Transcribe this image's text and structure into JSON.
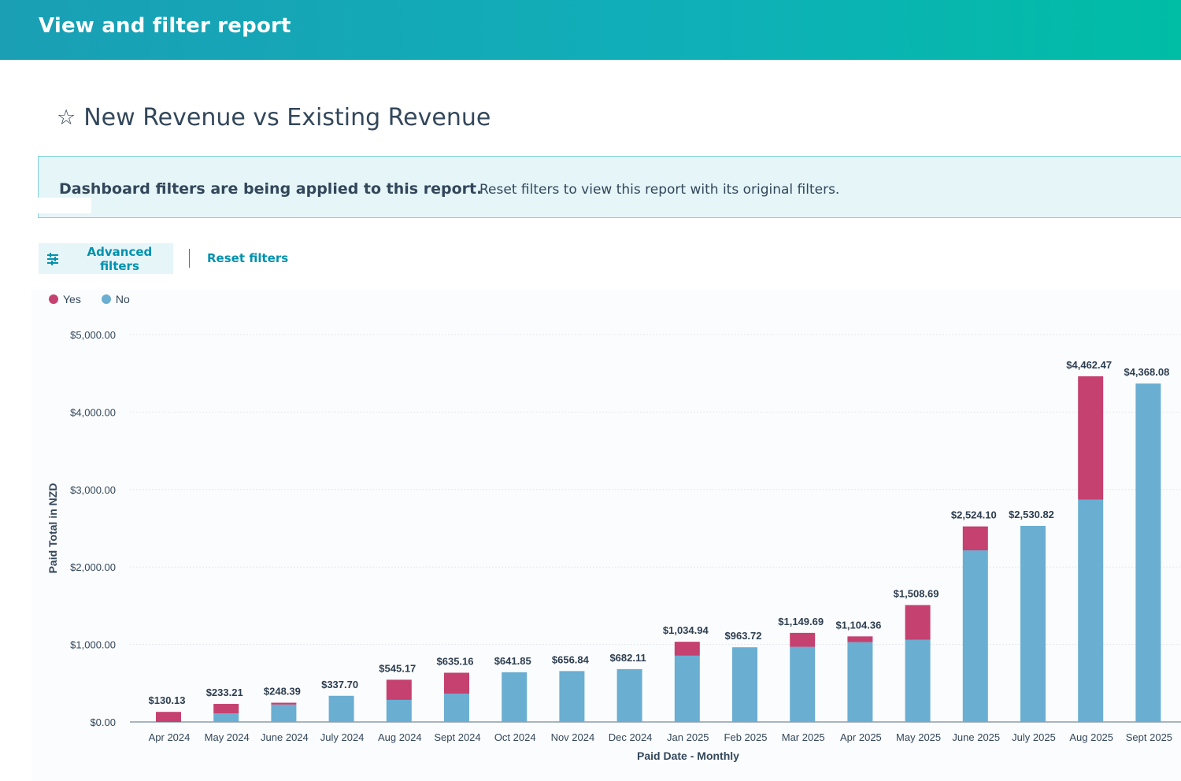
{
  "header": {
    "title": "View and filter report"
  },
  "report": {
    "title": "New Revenue vs Existing Revenue",
    "star_icon": "star-outline-icon"
  },
  "banner": {
    "strong": "Dashboard filters are being applied to this report.",
    "text": "Reset filters to view this report with its original filters."
  },
  "toolbar": {
    "advanced_filters_label": "Advanced filters",
    "advanced_filters_icon": "sliders-icon",
    "reset_filters_label": "Reset filters"
  },
  "colors": {
    "yes": "#c5416f",
    "no": "#6aaed2",
    "accent": "#0091ae"
  },
  "chart_data": {
    "type": "bar",
    "stacked": true,
    "xlabel": "Paid Date - Monthly",
    "ylabel": "Paid Total in NZD",
    "ylim": [
      0,
      5000
    ],
    "yticks": [
      "$0.00",
      "$1,000.00",
      "$2,000.00",
      "$3,000.00",
      "$4,000.00",
      "$5,000.00"
    ],
    "ytick_values": [
      0,
      1000,
      2000,
      3000,
      4000,
      5000
    ],
    "legend_position": "top-left",
    "grid": true,
    "categories": [
      "Apr 2024",
      "May 2024",
      "June 2024",
      "July 2024",
      "Aug 2024",
      "Sept 2024",
      "Oct 2024",
      "Nov 2024",
      "Dec 2024",
      "Jan 2025",
      "Feb 2025",
      "Mar 2025",
      "Apr 2025",
      "May 2025",
      "June 2025",
      "July 2025",
      "Aug 2025",
      "Sept 2025"
    ],
    "series": [
      {
        "name": "No",
        "values": [
          0,
          110,
          225,
          337.7,
          285,
          365,
          641.85,
          656.84,
          682.11,
          855,
          963.72,
          970,
          1030,
          1060,
          2215,
          2530.82,
          2870,
          4368.08
        ]
      },
      {
        "name": "Yes",
        "values": [
          130.13,
          123.21,
          23.39,
          0,
          260.17,
          270.16,
          0,
          0,
          0,
          179.94,
          0,
          179.69,
          74.36,
          448.69,
          309.1,
          0,
          1592.47,
          0
        ]
      }
    ],
    "totals": [
      "$130.13",
      "$233.21",
      "$248.39",
      "$337.70",
      "$545.17",
      "$635.16",
      "$641.85",
      "$656.84",
      "$682.11",
      "$1,034.94",
      "$963.72",
      "$1,149.69",
      "$1,104.36",
      "$1,508.69",
      "$2,524.10",
      "$2,530.82",
      "$4,462.47",
      "$4,368.08"
    ]
  }
}
